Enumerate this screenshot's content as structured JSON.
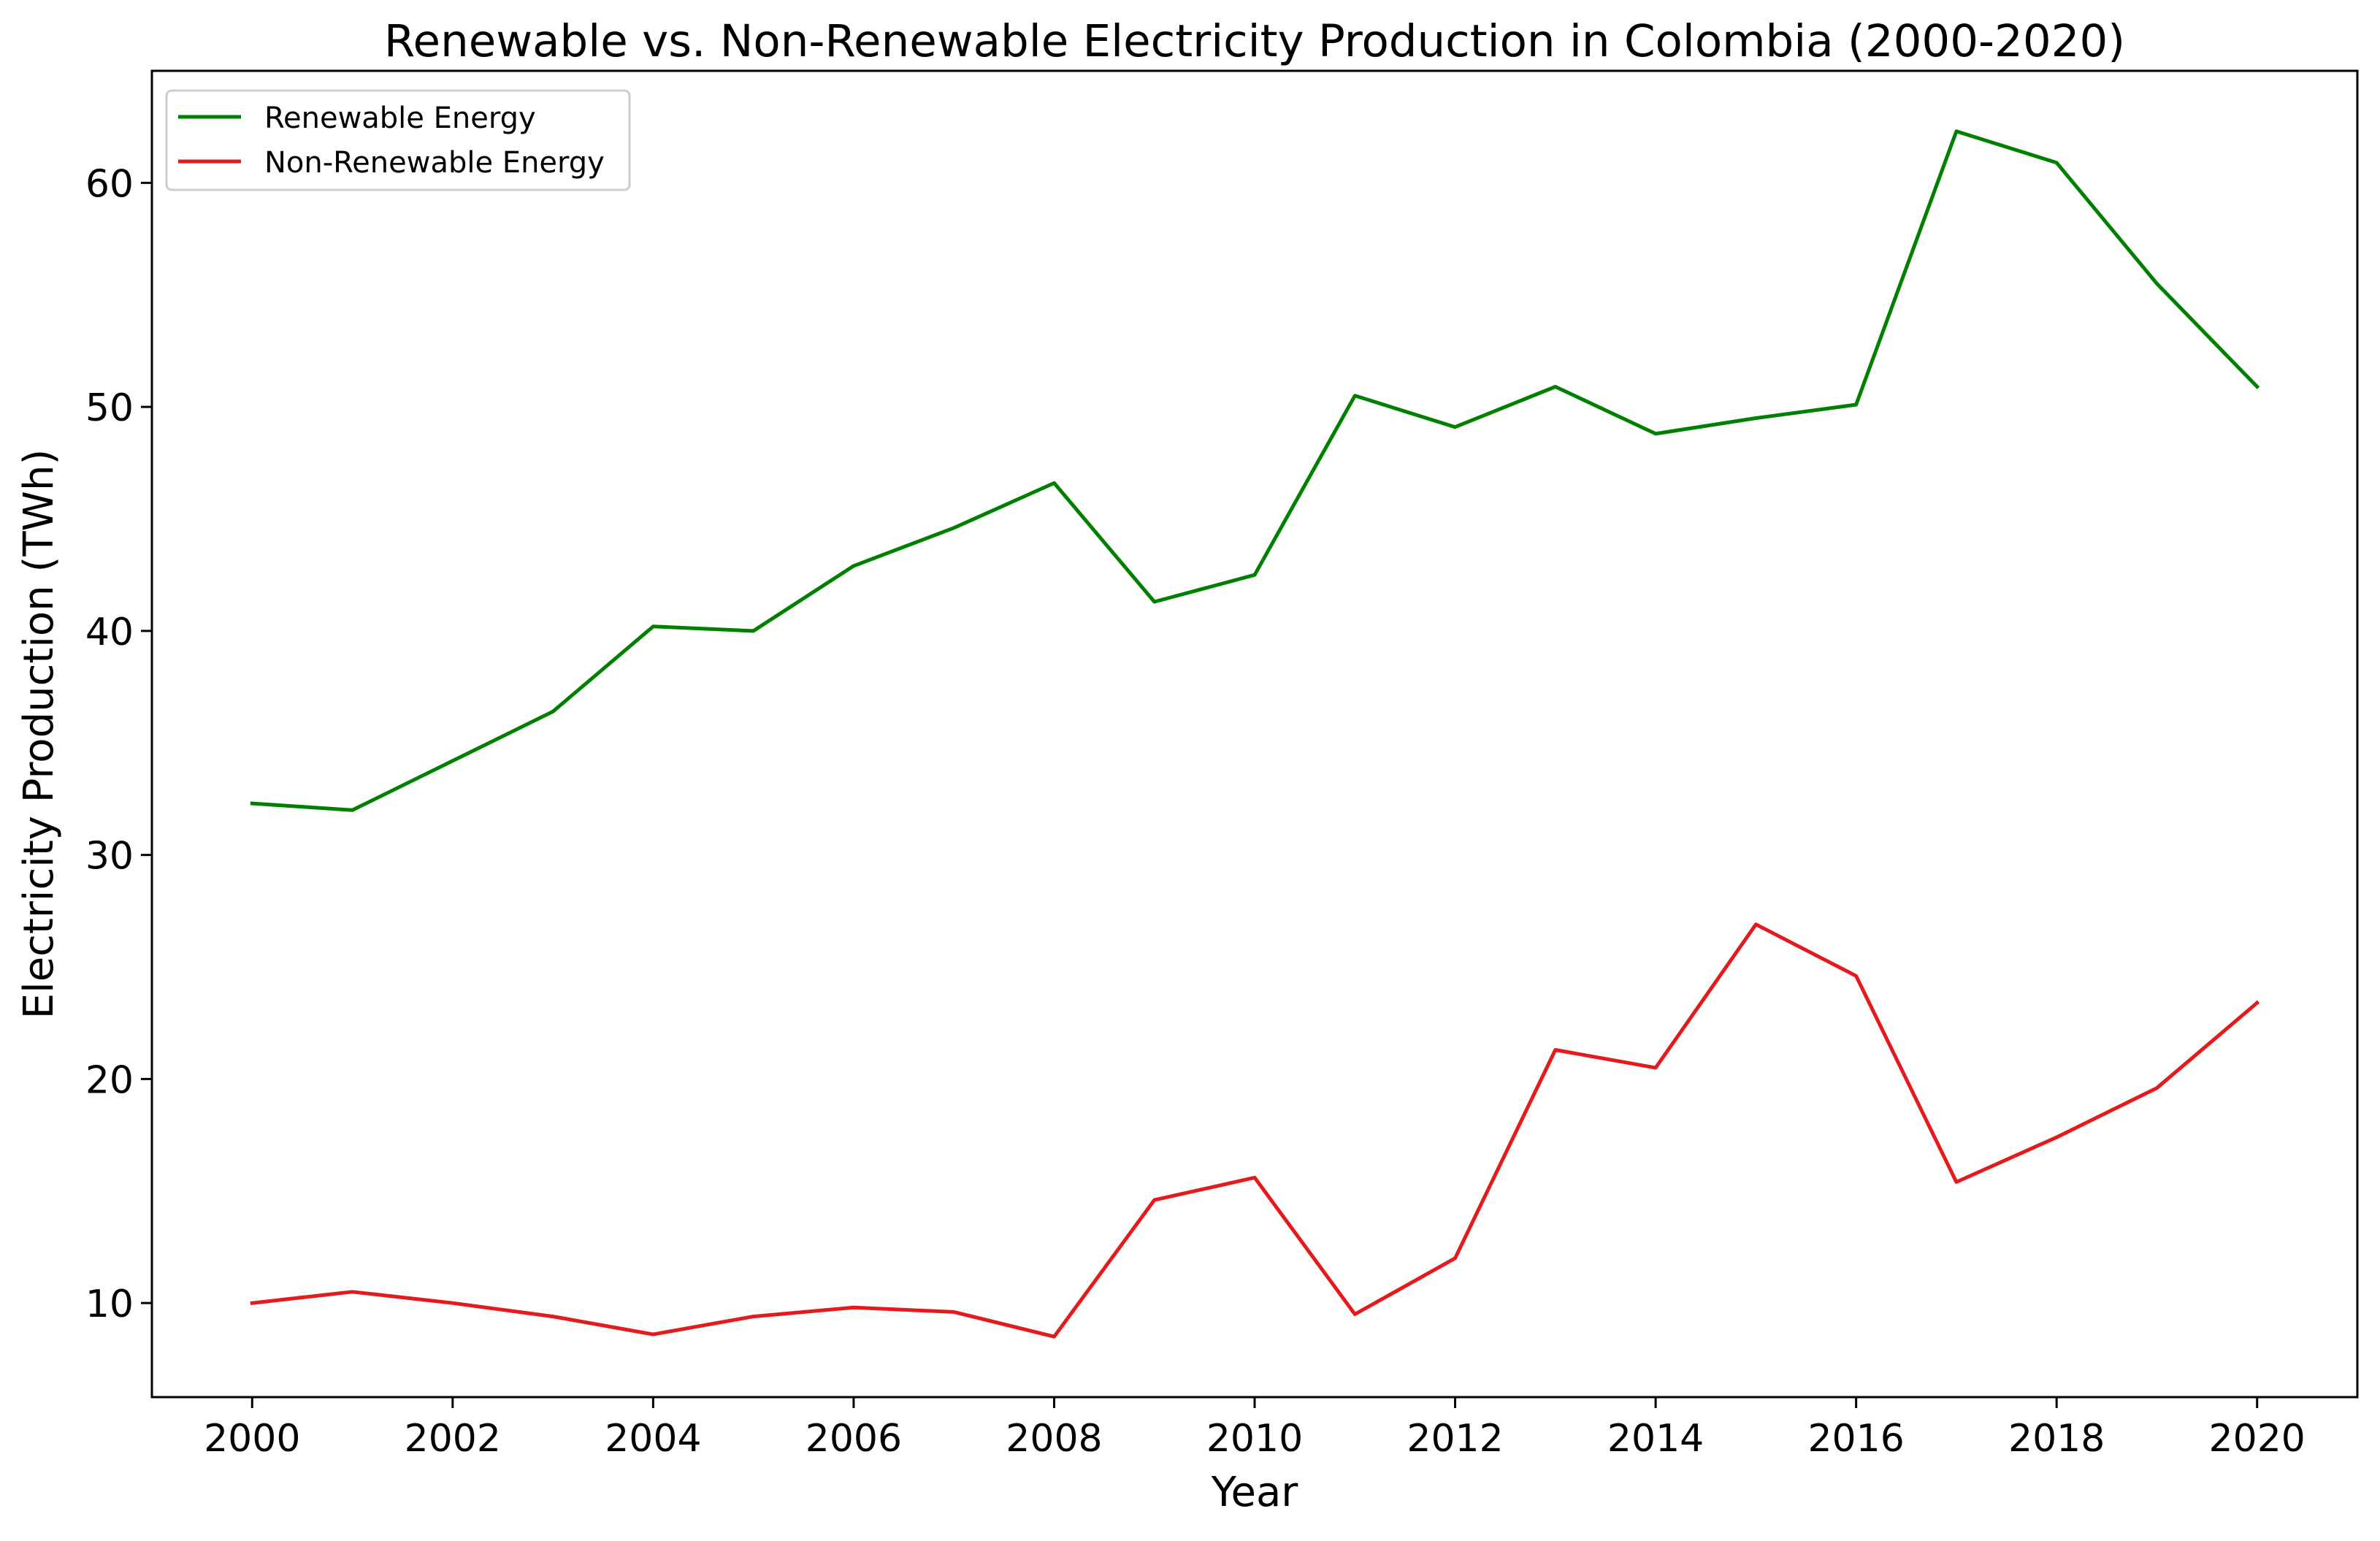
{
  "chart_data": {
    "type": "line",
    "title": "Renewable vs. Non-Renewable Electricity Production in Colombia (2000-2020)",
    "xlabel": "Year",
    "ylabel": "Electricity Production (TWh)",
    "x": [
      2000,
      2001,
      2002,
      2003,
      2004,
      2005,
      2006,
      2007,
      2008,
      2009,
      2010,
      2011,
      2012,
      2013,
      2014,
      2015,
      2016,
      2017,
      2018,
      2019,
      2020
    ],
    "xlim": [
      1999,
      2021
    ],
    "ylim": [
      5.8,
      65
    ],
    "xticks": [
      2000,
      2002,
      2004,
      2006,
      2008,
      2010,
      2012,
      2014,
      2016,
      2018,
      2020
    ],
    "yticks": [
      10,
      20,
      30,
      40,
      50,
      60
    ],
    "grid": false,
    "legend_position": "top-left",
    "series": [
      {
        "name": "Renewable Energy",
        "color": "#008000",
        "values": [
          32.3,
          32.0,
          34.2,
          36.4,
          40.2,
          40.0,
          42.9,
          44.6,
          46.6,
          41.3,
          42.5,
          50.5,
          49.1,
          50.9,
          48.8,
          49.5,
          50.1,
          62.3,
          60.9,
          55.5,
          50.9
        ]
      },
      {
        "name": "Non-Renewable Energy",
        "color": "#e41a1c",
        "values": [
          10.0,
          10.5,
          10.0,
          9.4,
          8.6,
          9.4,
          9.8,
          9.6,
          8.5,
          14.6,
          15.6,
          9.5,
          12.0,
          21.3,
          20.5,
          26.9,
          24.6,
          15.4,
          17.4,
          19.6,
          23.4
        ]
      }
    ]
  }
}
